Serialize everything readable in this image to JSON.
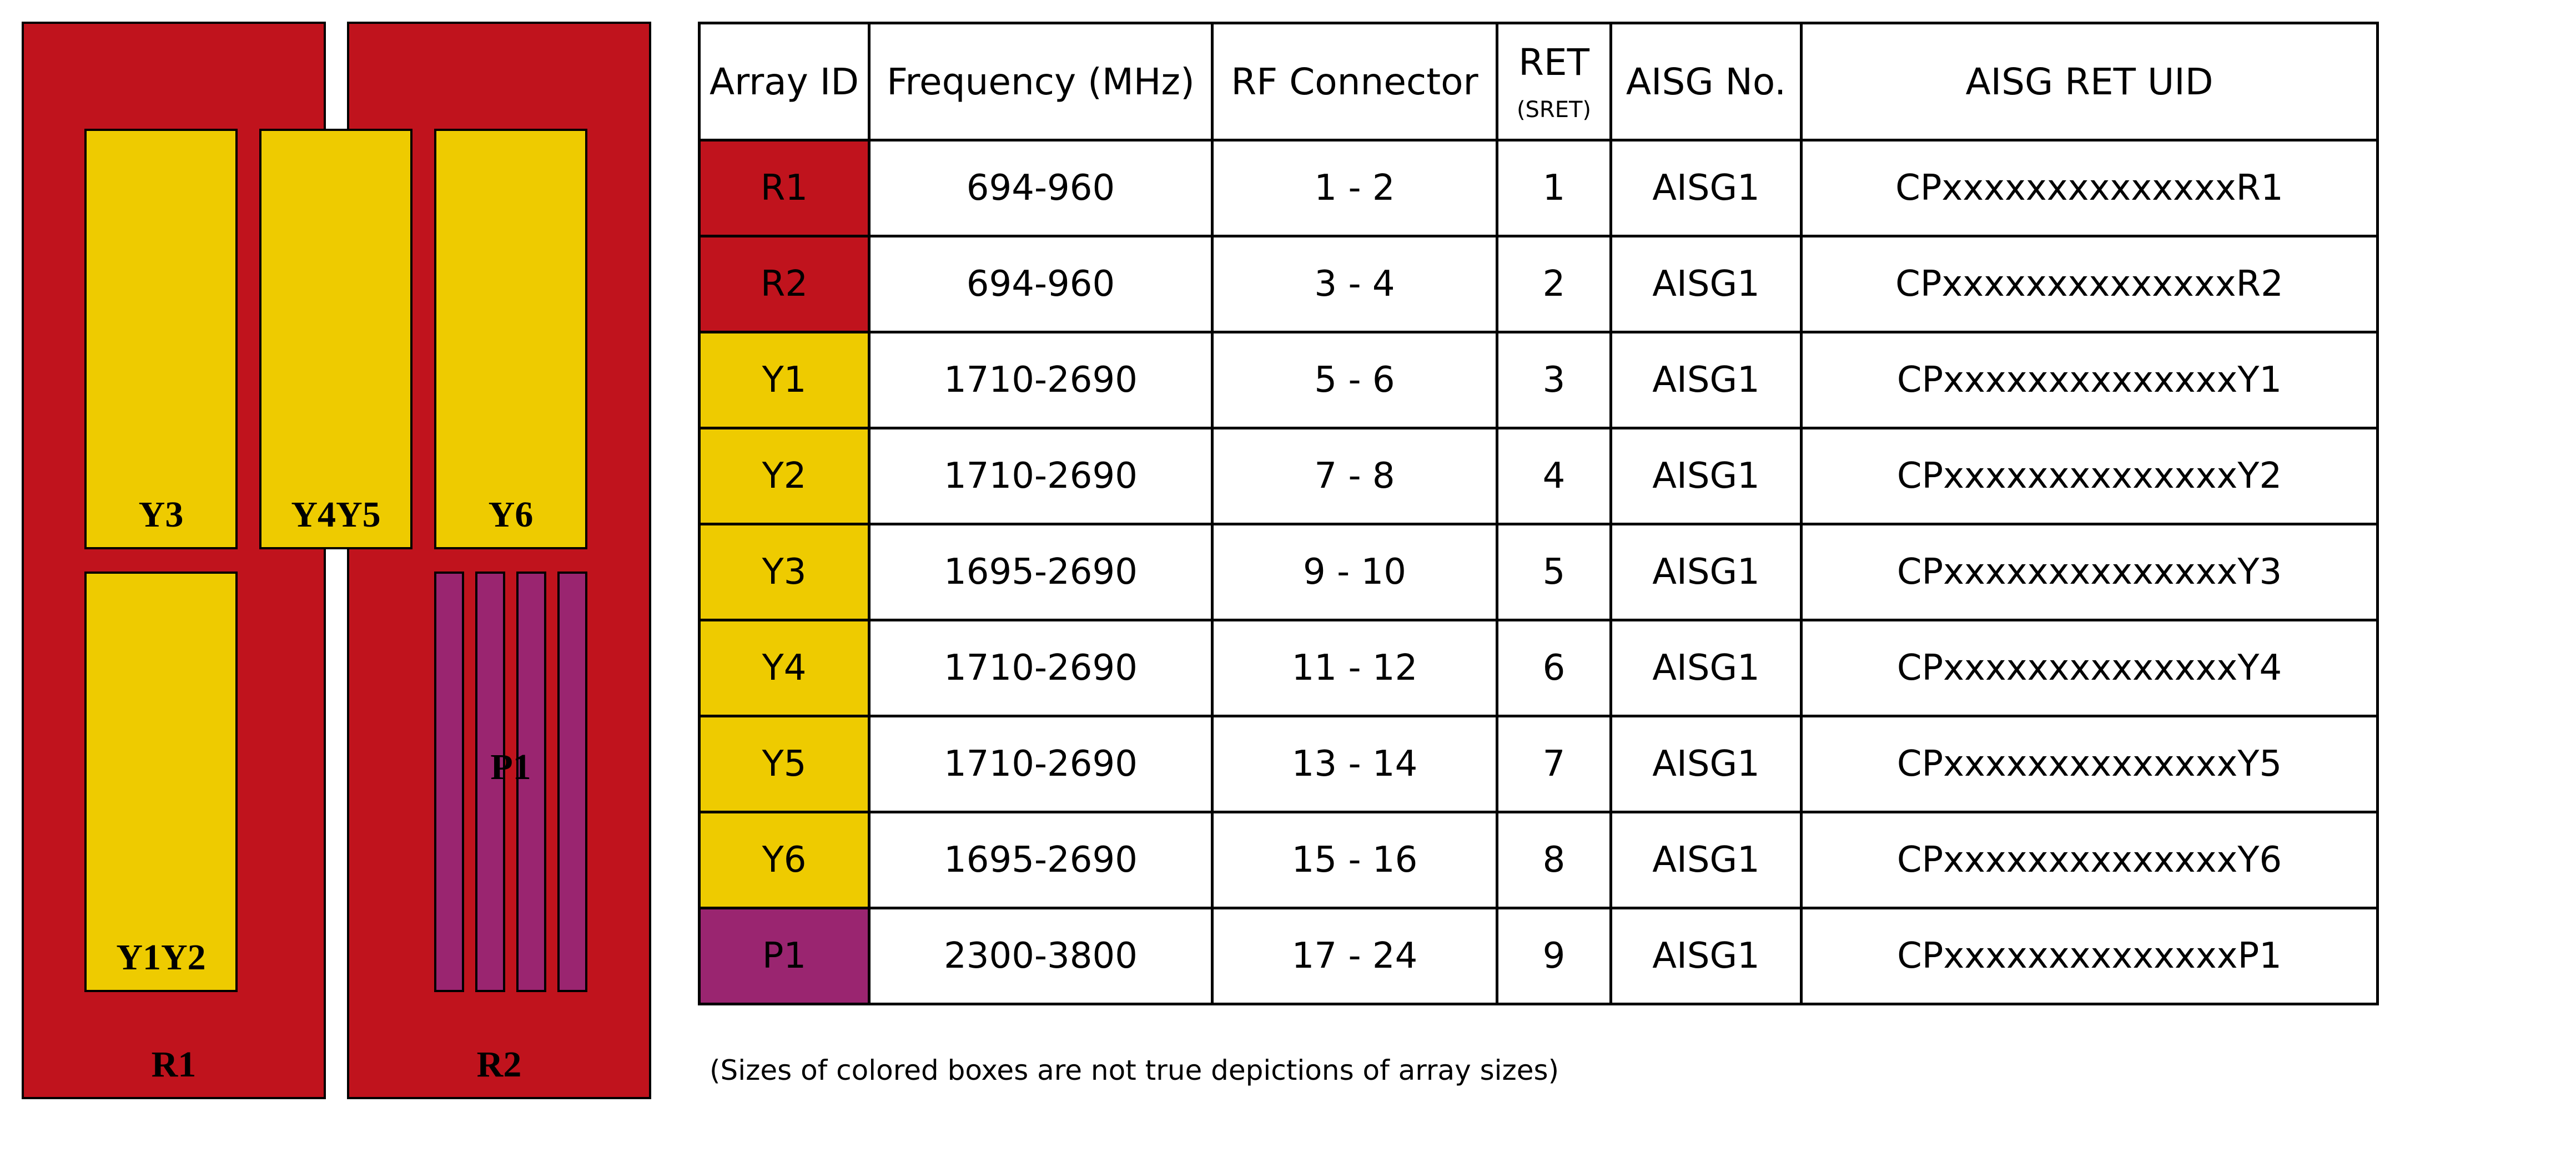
{
  "diagram": {
    "panels": [
      {
        "label": "R1"
      },
      {
        "label": "R2"
      }
    ],
    "blocks": {
      "y3": "Y3",
      "y4y5": "Y4Y5",
      "y6": "Y6",
      "y1y2": "Y1Y2",
      "p1": "P1"
    },
    "colors": {
      "red": "#c0131d",
      "yellow": "#eecb00",
      "purple": "#9a2570"
    }
  },
  "table": {
    "headers": {
      "array_id": "Array ID",
      "frequency": "Frequency (MHz)",
      "rf_connector": "RF Connector",
      "ret": "RET",
      "ret_sub": "(SRET)",
      "aisg_no": "AISG No.",
      "uid": "AISG RET UID"
    },
    "rows": [
      {
        "id": "R1",
        "color": "#c0131d",
        "freq": "694-960",
        "rf": "1 - 2",
        "ret": "1",
        "aisg": "AISG1",
        "uid": "CPxxxxxxxxxxxxxxR1"
      },
      {
        "id": "R2",
        "color": "#c0131d",
        "freq": "694-960",
        "rf": "3 - 4",
        "ret": "2",
        "aisg": "AISG1",
        "uid": "CPxxxxxxxxxxxxxxR2"
      },
      {
        "id": "Y1",
        "color": "#eecb00",
        "freq": "1710-2690",
        "rf": "5 - 6",
        "ret": "3",
        "aisg": "AISG1",
        "uid": "CPxxxxxxxxxxxxxxY1"
      },
      {
        "id": "Y2",
        "color": "#eecb00",
        "freq": "1710-2690",
        "rf": "7 - 8",
        "ret": "4",
        "aisg": "AISG1",
        "uid": "CPxxxxxxxxxxxxxxY2"
      },
      {
        "id": "Y3",
        "color": "#eecb00",
        "freq": "1695-2690",
        "rf": "9 - 10",
        "ret": "5",
        "aisg": "AISG1",
        "uid": "CPxxxxxxxxxxxxxxY3"
      },
      {
        "id": "Y4",
        "color": "#eecb00",
        "freq": "1710-2690",
        "rf": "11 - 12",
        "ret": "6",
        "aisg": "AISG1",
        "uid": "CPxxxxxxxxxxxxxxY4"
      },
      {
        "id": "Y5",
        "color": "#eecb00",
        "freq": "1710-2690",
        "rf": "13 - 14",
        "ret": "7",
        "aisg": "AISG1",
        "uid": "CPxxxxxxxxxxxxxxY5"
      },
      {
        "id": "Y6",
        "color": "#eecb00",
        "freq": "1695-2690",
        "rf": "15 - 16",
        "ret": "8",
        "aisg": "AISG1",
        "uid": "CPxxxxxxxxxxxxxxY6"
      },
      {
        "id": "P1",
        "color": "#9a2570",
        "freq": "2300-3800",
        "rf": "17 - 24",
        "ret": "9",
        "aisg": "AISG1",
        "uid": "CPxxxxxxxxxxxxxxP1"
      }
    ]
  },
  "note": "(Sizes of colored boxes are not true depictions of array sizes)"
}
